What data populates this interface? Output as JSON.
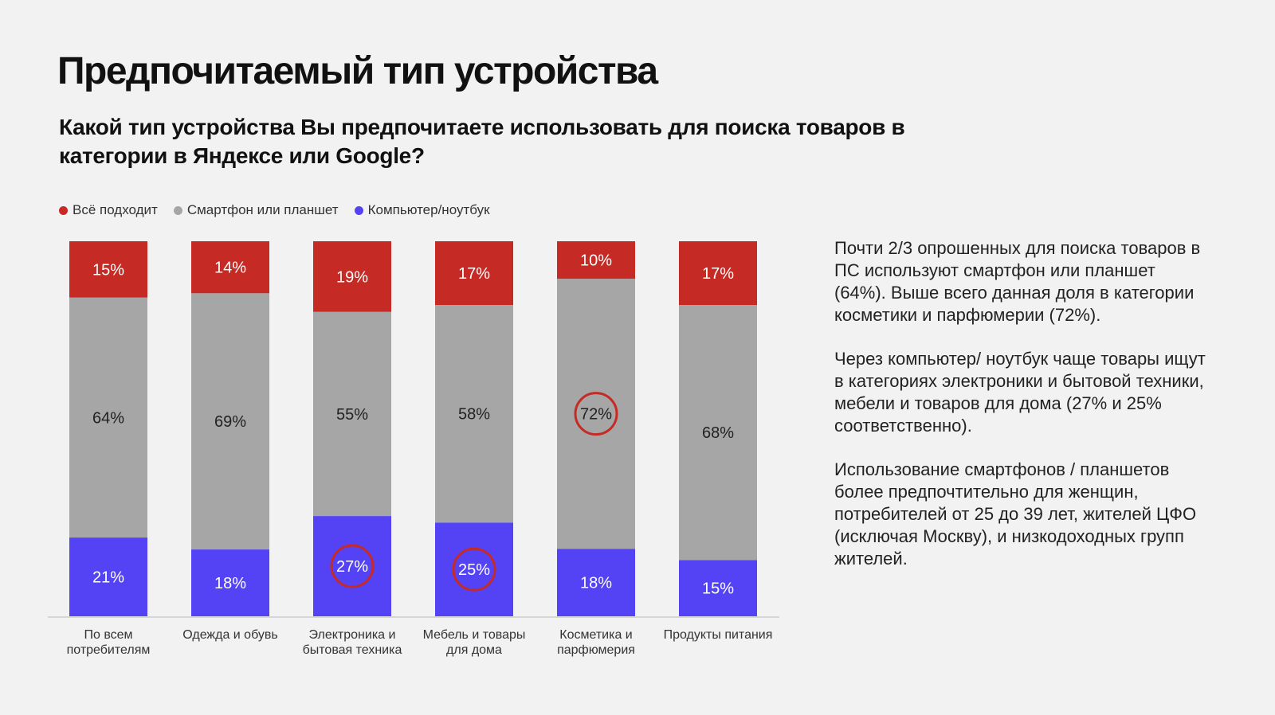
{
  "title": "Предпочитаемый тип устройства",
  "subtitle": "Какой тип устройства Вы предпочитаете использовать для поиска товаров в категории в Яндексе или Google?",
  "colors": {
    "all": "#c62a25",
    "smartphone": "#a6a6a6",
    "computer": "#5443f5",
    "highlight": "#c62a25"
  },
  "chart_data": {
    "type": "bar",
    "stacked": true,
    "categories": [
      [
        "По всем",
        "потребителям"
      ],
      [
        "Одежда и обувь"
      ],
      [
        "Электроника и",
        "бытовая техника"
      ],
      [
        "Мебель и товары",
        "для дома"
      ],
      [
        "Косметика и",
        "парфюмерия"
      ],
      [
        "Продукты питания"
      ]
    ],
    "series": [
      {
        "name": "Компьютер/ноутбук",
        "key": "computer",
        "values": [
          21,
          18,
          27,
          25,
          18,
          15
        ]
      },
      {
        "name": "Смартфон или планшет",
        "key": "smartphone",
        "values": [
          64,
          69,
          55,
          58,
          72,
          68
        ]
      },
      {
        "name": "Всё подходит",
        "key": "all",
        "values": [
          15,
          14,
          19,
          17,
          10,
          17
        ]
      }
    ],
    "legend_order": [
      "Всё подходит",
      "Смартфон или планшет",
      "Компьютер/ноутбук"
    ],
    "highlighted": [
      {
        "series": "computer",
        "category": 2
      },
      {
        "series": "computer",
        "category": 3
      },
      {
        "series": "smartphone",
        "category": 4
      }
    ],
    "unit": "%",
    "ylim": [
      0,
      100
    ],
    "legend_position": "top-left"
  },
  "notes": [
    "Почти 2/3 опрошенных для поиска товаров в ПС используют смартфон или планшет (64%). Выше всего данная доля в категории косметики и парфюмерии (72%).",
    "Через компьютер/ ноутбук чаще товары ищут в категориях электроники и бытовой техники, мебели и товаров для дома (27% и 25% соответственно).",
    "Использование смартфонов / планшетов более предпочтительно для женщин, потребителей от 25 до 39 лет, жителей ЦФО (исключая Москву), и низкодоходных групп жителей."
  ]
}
